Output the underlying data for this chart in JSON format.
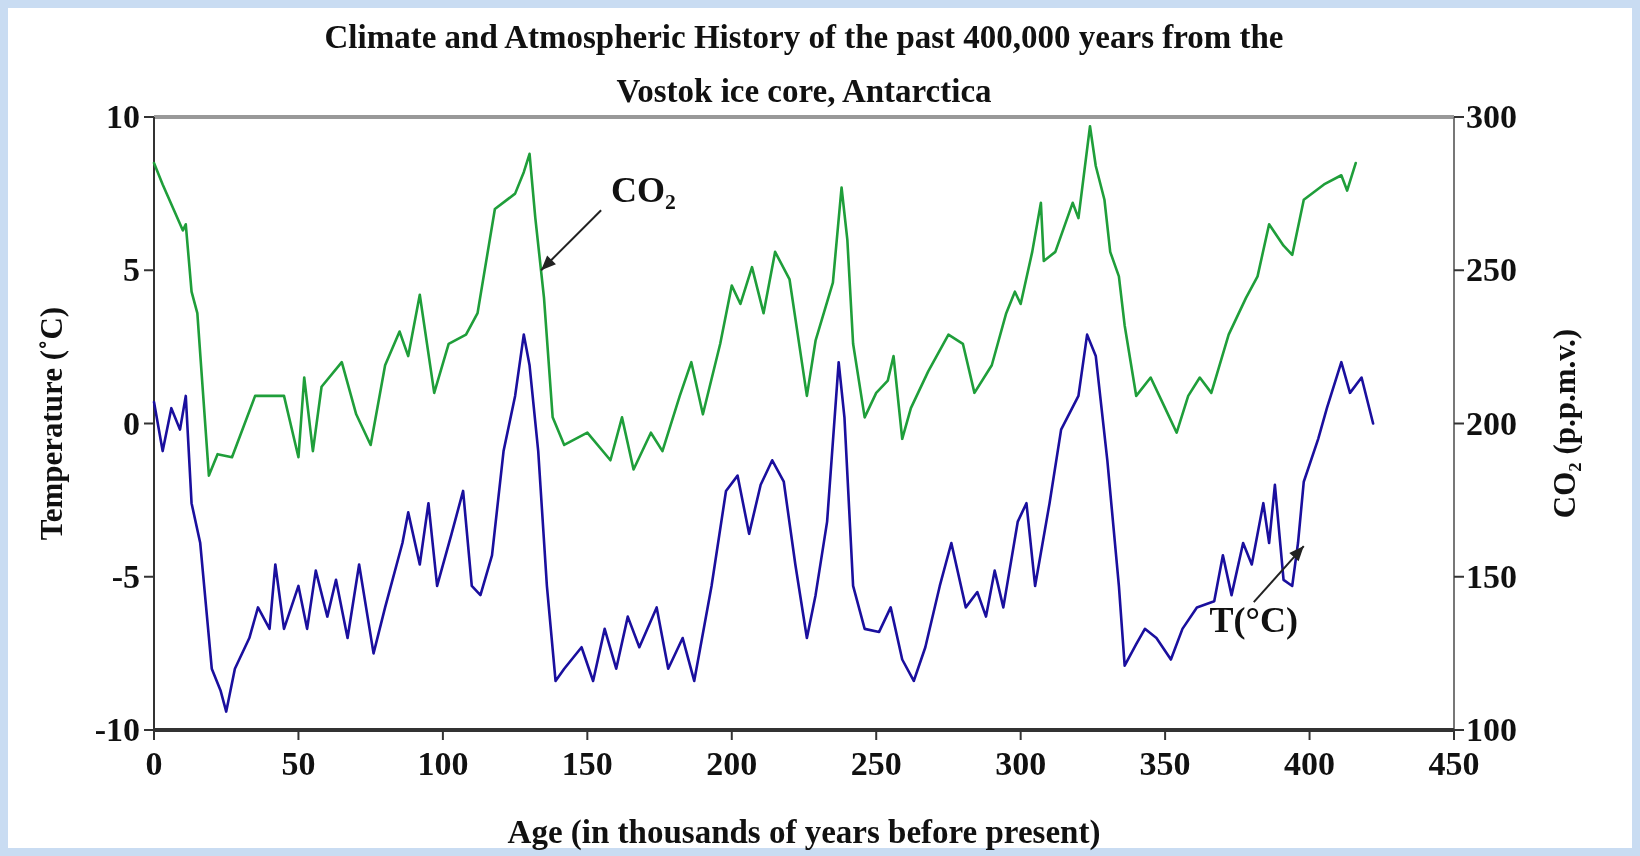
{
  "chart_data": {
    "type": "line",
    "title": "Climate and Atmospheric History of the past 400,000 years from the Vostok ice core, Antarctica",
    "xlabel": "Age (in thousands of years before present)",
    "ylabel": "Temperature (˚C)",
    "y2label": "CO₂ (p.p.m.v.)",
    "xlim": [
      0,
      450
    ],
    "xticks": [
      0,
      50,
      100,
      150,
      200,
      250,
      300,
      350,
      400,
      450
    ],
    "ylim": [
      -10,
      10
    ],
    "yticks": [
      -10,
      -5,
      0,
      5,
      10
    ],
    "y2lim": [
      100,
      300
    ],
    "y2ticks": [
      100,
      150,
      200,
      250,
      300
    ],
    "grid": false,
    "marker": "none",
    "line_style": "solid",
    "annotations": [
      {
        "text": "CO₂",
        "x": 134,
        "y": 5
      },
      {
        "text": "T(°C)",
        "x": 398,
        "y": -4
      }
    ],
    "series": [
      {
        "color": "#1f9e3a",
        "axis": "y2",
        "x": [
          0,
          3,
          10,
          11,
          13,
          15,
          19,
          22,
          27,
          35,
          45,
          50,
          52,
          55,
          58,
          65,
          70,
          75,
          80,
          85,
          88,
          92,
          97,
          102,
          108,
          112,
          118,
          125,
          128,
          130,
          132,
          135,
          138,
          142,
          150,
          158,
          162,
          166,
          172,
          176,
          182,
          186,
          190,
          196,
          200,
          203,
          207,
          211,
          215,
          220,
          226,
          229,
          235,
          238,
          240,
          242,
          246,
          250,
          254,
          256,
          259,
          262,
          268,
          275,
          280,
          284,
          290,
          295,
          298,
          300,
          304,
          307,
          308,
          312,
          318,
          320,
          324,
          326,
          329,
          331,
          334,
          336,
          340,
          345,
          350,
          354,
          358,
          362,
          366,
          372,
          378,
          382,
          386,
          391,
          394,
          398,
          405,
          411,
          413,
          416
        ],
        "values": [
          285,
          278,
          263,
          265,
          243,
          236,
          183,
          190,
          189,
          209,
          209,
          189,
          215,
          191,
          212,
          220,
          203,
          193,
          219,
          230,
          222,
          242,
          210,
          226,
          229,
          236,
          270,
          275,
          282,
          288,
          267,
          241,
          202,
          193,
          197,
          188,
          202,
          185,
          197,
          191,
          209,
          220,
          203,
          226,
          245,
          239,
          251,
          236,
          256,
          247,
          209,
          227,
          246,
          277,
          260,
          226,
          202,
          210,
          214,
          222,
          195,
          205,
          217,
          229,
          226,
          210,
          219,
          236,
          243,
          239,
          256,
          272,
          253,
          256,
          272,
          267,
          297,
          284,
          273,
          256,
          248,
          232,
          209,
          215,
          205,
          197,
          209,
          215,
          210,
          229,
          241,
          248,
          265,
          258,
          255,
          273,
          278,
          281,
          276,
          285
        ]
      },
      {
        "color": "#1a0f9e",
        "x": [
          0,
          3,
          6,
          9,
          11,
          13,
          16,
          20,
          23,
          25,
          28,
          33,
          36,
          40,
          42,
          45,
          50,
          53,
          56,
          60,
          63,
          67,
          71,
          76,
          80,
          86,
          88,
          92,
          95,
          98,
          103,
          107,
          110,
          113,
          117,
          121,
          125,
          128,
          130,
          133,
          136,
          139,
          142,
          148,
          152,
          156,
          160,
          164,
          168,
          174,
          178,
          183,
          187,
          193,
          198,
          202,
          206,
          210,
          214,
          218,
          222,
          226,
          229,
          233,
          237,
          239,
          242,
          246,
          251,
          255,
          259,
          263,
          267,
          272,
          276,
          281,
          285,
          288,
          291,
          294,
          299,
          302,
          305,
          310,
          314,
          320,
          323,
          326,
          330,
          334,
          336,
          340,
          343,
          347,
          352,
          356,
          361,
          367,
          370,
          373,
          377,
          380,
          384,
          386,
          388,
          391,
          394,
          396,
          398,
          403,
          406,
          411,
          414,
          418,
          422
        ],
        "values": [
          0.7,
          -0.9,
          0.5,
          -0.2,
          0.9,
          -2.6,
          -3.9,
          -8.0,
          -8.7,
          -9.4,
          -8.0,
          -7.0,
          -6.0,
          -6.7,
          -4.6,
          -6.7,
          -5.3,
          -6.7,
          -4.8,
          -6.3,
          -5.1,
          -7.0,
          -4.6,
          -7.5,
          -6.0,
          -3.9,
          -2.9,
          -4.6,
          -2.6,
          -5.3,
          -3.6,
          -2.2,
          -5.3,
          -5.6,
          -4.3,
          -0.9,
          0.9,
          2.9,
          1.9,
          -0.9,
          -5.3,
          -8.4,
          -8.0,
          -7.3,
          -8.4,
          -6.7,
          -8.0,
          -6.3,
          -7.3,
          -6.0,
          -8.0,
          -7.0,
          -8.4,
          -5.3,
          -2.2,
          -1.7,
          -3.6,
          -2.0,
          -1.2,
          -1.9,
          -4.6,
          -7.0,
          -5.6,
          -3.2,
          2.0,
          0.2,
          -5.3,
          -6.7,
          -6.8,
          -6.0,
          -7.7,
          -8.4,
          -7.3,
          -5.3,
          -3.9,
          -6.0,
          -5.5,
          -6.3,
          -4.8,
          -6.0,
          -3.2,
          -2.6,
          -5.3,
          -2.6,
          -0.2,
          0.9,
          2.9,
          2.2,
          -1.2,
          -5.3,
          -7.9,
          -7.2,
          -6.7,
          -7.0,
          -7.7,
          -6.7,
          -6.0,
          -5.8,
          -4.3,
          -5.6,
          -3.9,
          -4.6,
          -2.6,
          -3.9,
          -2.0,
          -5.1,
          -5.3,
          -3.9,
          -1.9,
          -0.5,
          0.5,
          2.0,
          1.0,
          1.5,
          0.0
        ]
      }
    ]
  }
}
